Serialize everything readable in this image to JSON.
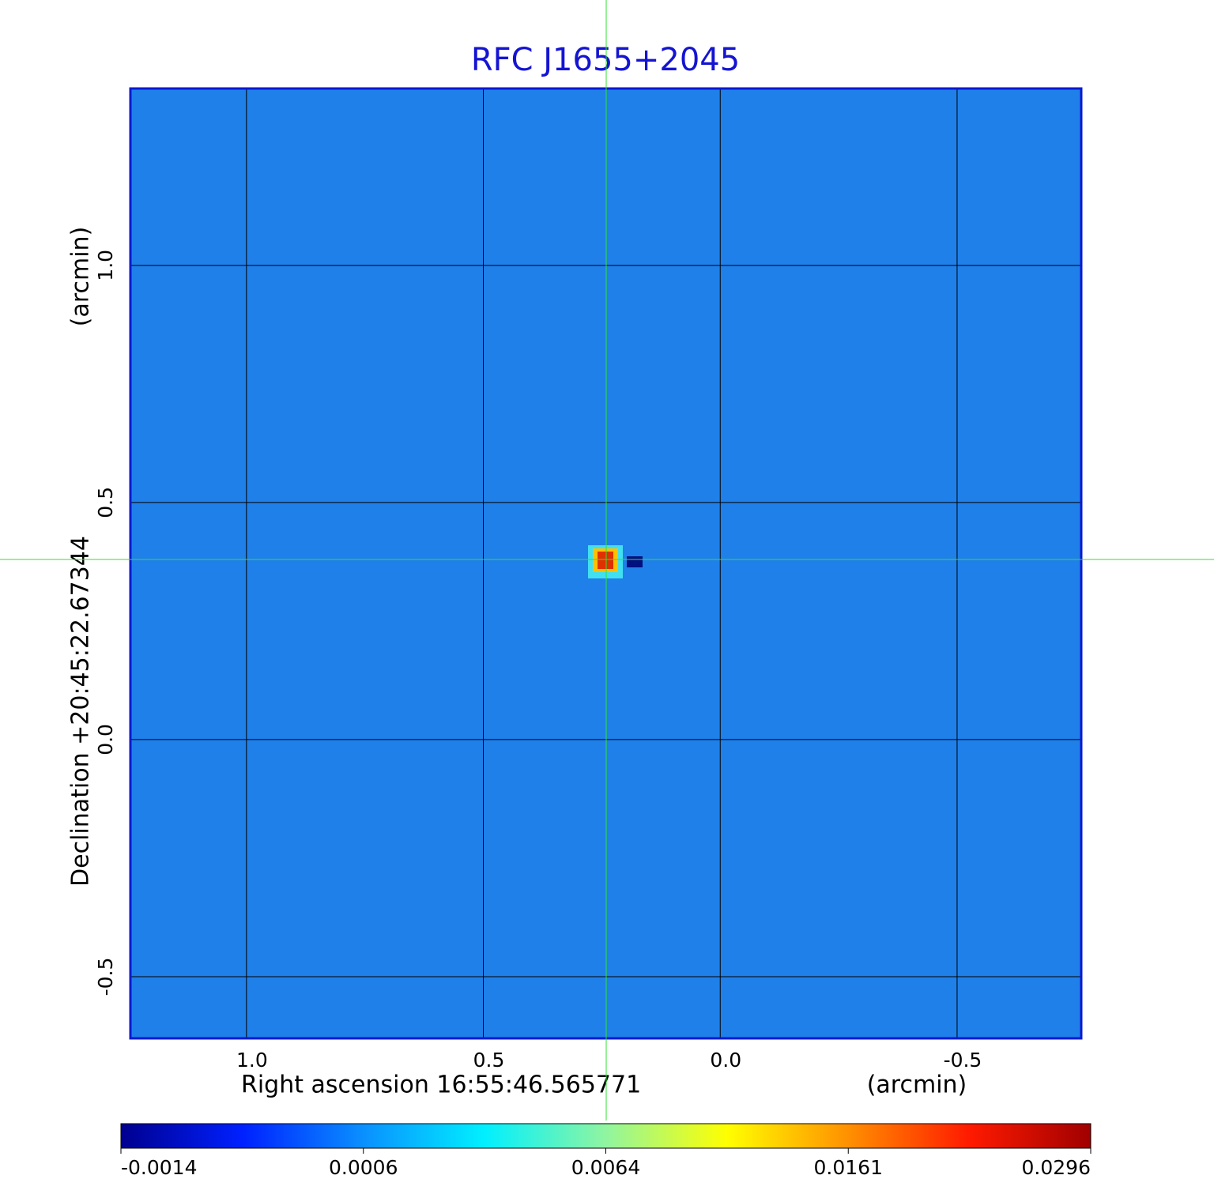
{
  "chart_data": {
    "type": "image",
    "title": "RFC J1655+2045",
    "x_label": "Right ascension  16:55:46.565771",
    "x_unit": "(arcmin)",
    "y_label": "Declination  +20:45:22.67344",
    "y_unit": "(arcmin)",
    "xlim": [
      1.245,
      -0.762
    ],
    "ylim": [
      -0.63,
      1.373
    ],
    "xticks": [
      {
        "value": 1.0,
        "label": "1.0"
      },
      0.5,
      {
        "value": 0.0,
        "label": "0.0"
      },
      -0.5
    ],
    "yticks": [
      {
        "value": 1.0,
        "label": "1.0"
      },
      0.5,
      {
        "value": 0.0,
        "label": "0.0"
      },
      -0.5
    ],
    "grid": true,
    "colorbar": {
      "ticks": [
        -0.0014,
        0.0006,
        0.0064,
        0.0161,
        0.0296
      ],
      "colormap": [
        "#00008f",
        "#0020ff",
        "#0a90ff",
        "#00f0ff",
        "#90f5a0",
        "#ffff00",
        "#ff9000",
        "#ff1a00",
        "#a00000"
      ]
    }
  }
}
